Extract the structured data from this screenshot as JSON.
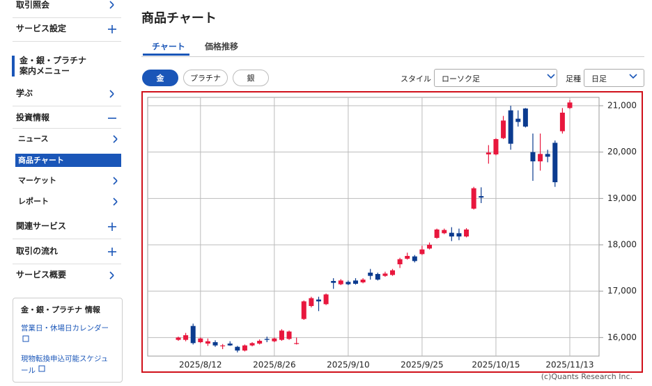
{
  "sidebar": {
    "items": [
      {
        "label": "取引照会",
        "icon": "chevron"
      },
      {
        "label": "サービス設定",
        "icon": "plus"
      },
      {
        "label": "金・銀・プラチナ\n案内メニュー",
        "icon": "section"
      },
      {
        "label": "学ぶ",
        "icon": "chevron"
      },
      {
        "label": "投資情報",
        "icon": "minus"
      },
      {
        "label": "ニュース",
        "icon": "chevron",
        "sub": true
      },
      {
        "label": "商品チャート",
        "icon": "chevron",
        "sub": true,
        "active": true
      },
      {
        "label": "マーケット",
        "icon": "chevron",
        "sub": true
      },
      {
        "label": "レポート",
        "icon": "chevron",
        "sub": true
      },
      {
        "label": "関連サービス",
        "icon": "plus"
      },
      {
        "label": "取引の流れ",
        "icon": "plus"
      },
      {
        "label": "サービス概要",
        "icon": "chevron"
      }
    ],
    "info": {
      "title": "金・銀・プラチナ 情報",
      "links": [
        "営業日・休場日カレンダー",
        "現物転換申込可能スケジュール"
      ]
    }
  },
  "header": {
    "title": "商品チャート",
    "tabs": [
      "チャート",
      "価格推移"
    ],
    "metals": [
      "金",
      "プラチナ",
      "銀"
    ],
    "style_label": "スタイル",
    "style_value": "ローソク足",
    "period_label": "足種",
    "period_value": "日足"
  },
  "copyright": "(c)Quants Research Inc.",
  "chart_data": {
    "type": "candlestick",
    "up_color": "#e8173d",
    "down_color": "#0b3b8f",
    "grid": true,
    "categories": [
      null,
      null,
      null,
      "2025/8/12",
      null,
      null,
      null,
      null,
      null,
      null,
      null,
      null,
      null,
      "2025/8/26",
      null,
      null,
      null,
      null,
      null,
      null,
      null,
      null,
      null,
      "2025/9/10",
      null,
      null,
      null,
      null,
      null,
      null,
      null,
      null,
      null,
      "2025/9/25",
      null,
      null,
      null,
      null,
      null,
      null,
      null,
      null,
      null,
      "2025/10/15",
      null,
      null,
      null,
      null,
      null,
      null,
      null,
      null,
      null,
      "2025/11/13"
    ],
    "open": [
      15950,
      15950,
      16250,
      15900,
      15870,
      15900,
      15820,
      15870,
      15800,
      15720,
      15830,
      15870,
      15970,
      15920,
      15950,
      15970,
      15870,
      16400,
      16680,
      16820,
      16720,
      17220,
      17150,
      17200,
      17230,
      17190,
      17400,
      17370,
      17330,
      17350,
      17580,
      17700,
      17750,
      17800,
      17920,
      18150,
      18250,
      18260,
      18250,
      18180,
      18780,
      19050,
      19950,
      19950,
      20300,
      20900,
      20720,
      20940,
      20000,
      19800,
      19960,
      20200,
      20450,
      20950
    ],
    "high": [
      16020,
      16100,
      16300,
      16000,
      15980,
      15940,
      15860,
      15920,
      15820,
      15850,
      15900,
      15960,
      16020,
      16000,
      16180,
      16150,
      16000,
      16800,
      16880,
      16880,
      16950,
      17280,
      17260,
      17230,
      17280,
      17280,
      17480,
      17400,
      17420,
      17480,
      17720,
      17830,
      17780,
      17980,
      18050,
      18350,
      18350,
      18380,
      18350,
      18360,
      19250,
      19240,
      20150,
      20300,
      20780,
      21000,
      20900,
      20950,
      20400,
      20400,
      20050,
      20250,
      20950,
      21120
    ],
    "low": [
      15930,
      15920,
      15850,
      15880,
      15820,
      15800,
      15750,
      15820,
      15680,
      15700,
      15810,
      15850,
      15900,
      15900,
      15930,
      15950,
      15850,
      16380,
      16650,
      16570,
      16700,
      17050,
      17130,
      17130,
      17140,
      17170,
      17250,
      17230,
      17310,
      17330,
      17500,
      17680,
      17620,
      17780,
      17900,
      18130,
      18230,
      18080,
      18100,
      18160,
      18760,
      18900,
      19750,
      19930,
      20280,
      20050,
      20550,
      20530,
      19380,
      19600,
      19780,
      19250,
      20400,
      20930
    ],
    "close": [
      16000,
      16050,
      15880,
      15980,
      15920,
      15830,
      15830,
      15830,
      15720,
      15830,
      15880,
      15930,
      15950,
      15980,
      16150,
      16130,
      15880,
      16780,
      16850,
      16780,
      16930,
      17180,
      17230,
      17150,
      17160,
      17250,
      17330,
      17250,
      17380,
      17450,
      17690,
      17760,
      17650,
      17900,
      18000,
      18330,
      18320,
      18180,
      18180,
      18330,
      19220,
      19020,
      19990,
      20280,
      20680,
      20180,
      20650,
      20550,
      19800,
      19960,
      19900,
      19350,
      20850,
      21070
    ],
    "ylim": [
      15600,
      21180
    ],
    "yticks": [
      {
        "value": 16000,
        "label": "16,000"
      },
      {
        "value": 17000,
        "label": "17,000"
      },
      {
        "value": 18000,
        "label": "18,000"
      },
      {
        "value": 19000,
        "label": "19,000"
      },
      {
        "value": 20000,
        "label": "20,000"
      },
      {
        "value": 21000,
        "label": "21,000"
      }
    ]
  }
}
